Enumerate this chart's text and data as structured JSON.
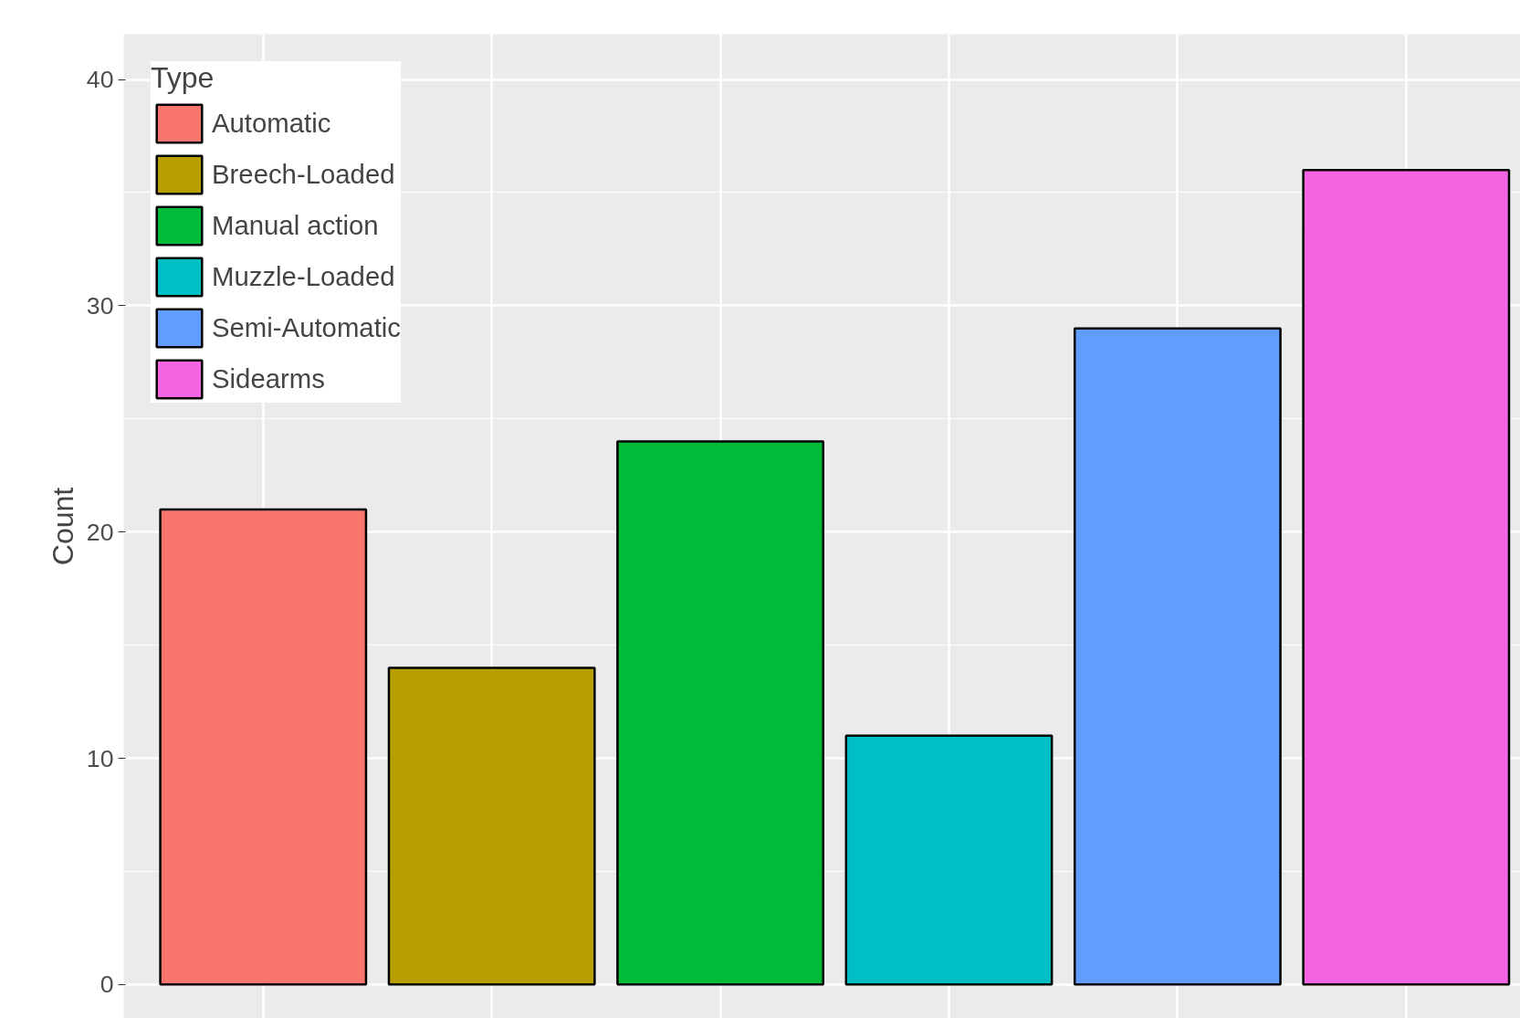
{
  "chart_data": {
    "type": "bar",
    "ylabel": "Count",
    "legend_title": "Type",
    "categories": [
      null,
      null,
      null,
      null,
      null,
      null
    ],
    "series": [
      {
        "name": "Automatic",
        "color": "#f8766d",
        "values": [
          21,
          null,
          null,
          null,
          null,
          null
        ]
      },
      {
        "name": "Breech-Loaded",
        "color": "#b79f00",
        "values": [
          null,
          14,
          null,
          null,
          null,
          null
        ]
      },
      {
        "name": "Manual action",
        "color": "#00ba38",
        "values": [
          null,
          null,
          24,
          null,
          null,
          null
        ]
      },
      {
        "name": "Muzzle-Loaded",
        "color": "#00bfc4",
        "values": [
          null,
          null,
          null,
          11,
          null,
          null
        ]
      },
      {
        "name": "Semi-Automatic",
        "color": "#619cff",
        "values": [
          null,
          null,
          null,
          null,
          29,
          null
        ]
      },
      {
        "name": "Sidearms",
        "color": "#f564e3",
        "values": [
          null,
          null,
          null,
          null,
          null,
          36
        ]
      }
    ],
    "ylim": [
      -1.5,
      42
    ],
    "yticks": [
      0,
      10,
      20,
      30,
      40
    ],
    "grid": true,
    "legend": "top left",
    "tick_labels": "y"
  }
}
